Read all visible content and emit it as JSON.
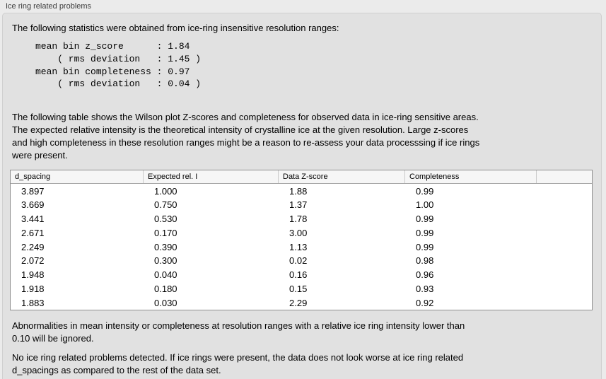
{
  "group": {
    "label": "Ice ring related problems"
  },
  "panel": {
    "intro": "The following statistics were obtained from ice-ring insensitive resolution ranges:",
    "stats_block": "mean bin z_score      : 1.84\n    ( rms deviation   : 1.45 )\nmean bin completeness : 0.97\n    ( rms deviation   : 0.04 )",
    "table_description": "The following table shows the Wilson plot Z-scores and completeness for observed data in ice-ring sensitive areas.\nThe expected relative intensity is the theoretical intensity of crystalline ice at the given resolution. Large z-scores\nand high completeness in these resolution ranges might be a reason to re-assess your data processsing if ice rings\nwere present.",
    "ignore_note": "Abnormalities in mean intensity or completeness at resolution ranges with a relative ice ring intensity lower than\n0.10 will be ignored.",
    "conclusion": "No ice ring related problems detected. If ice rings were present, the data does not look worse at ice ring related\nd_spacings as compared to the rest of the data set."
  },
  "table": {
    "columns": [
      "d_spacing",
      "Expected rel. I",
      "Data Z-score",
      "Completeness"
    ],
    "rows": [
      [
        "3.897",
        "1.000",
        "1.88",
        "0.99"
      ],
      [
        "3.669",
        "0.750",
        "1.37",
        "1.00"
      ],
      [
        "3.441",
        "0.530",
        "1.78",
        "0.99"
      ],
      [
        "2.671",
        "0.170",
        "3.00",
        "0.99"
      ],
      [
        "2.249",
        "0.390",
        "1.13",
        "0.99"
      ],
      [
        "2.072",
        "0.300",
        "0.02",
        "0.98"
      ],
      [
        "1.948",
        "0.040",
        "0.16",
        "0.96"
      ],
      [
        "1.918",
        "0.180",
        "0.15",
        "0.93"
      ],
      [
        "1.883",
        "0.030",
        "2.29",
        "0.92"
      ]
    ]
  },
  "theme": {
    "page_background": "#ebebeb",
    "panel_background": "#e1e1e1",
    "table_header_background": "#f6f6f6",
    "table_border": "#8f8f8f",
    "text_color": "#000000"
  }
}
